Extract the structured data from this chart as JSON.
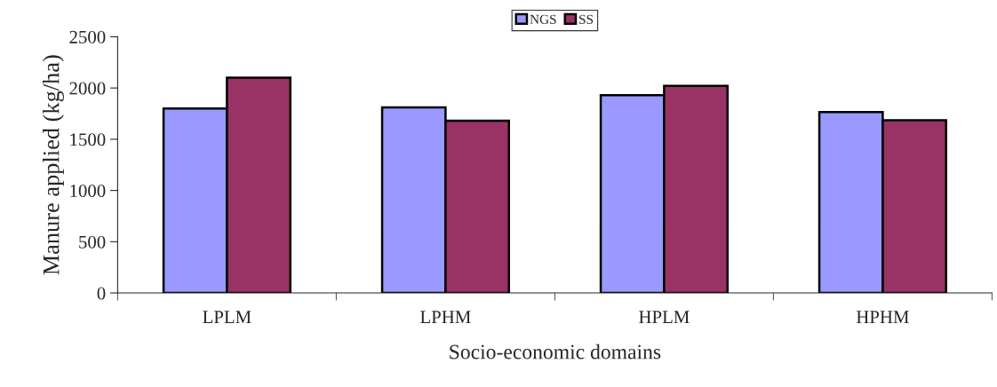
{
  "chart_data": {
    "type": "bar",
    "xlabel": "Socio-economic domains",
    "ylabel": "Manure applied (kg/ha)",
    "categories": [
      "LPLM",
      "LPHM",
      "HPLM",
      "HPHM"
    ],
    "series": [
      {
        "name": "NGS",
        "color": "#9999ff",
        "values": [
          1800,
          1810,
          1930,
          1765
        ]
      },
      {
        "name": "SS",
        "color": "#993366",
        "values": [
          2100,
          1680,
          2020,
          1685
        ]
      }
    ],
    "ylim": [
      0,
      2500
    ],
    "yticks": [
      0,
      500,
      1000,
      1500,
      2000,
      2500
    ],
    "grid": false,
    "legend": "top"
  }
}
